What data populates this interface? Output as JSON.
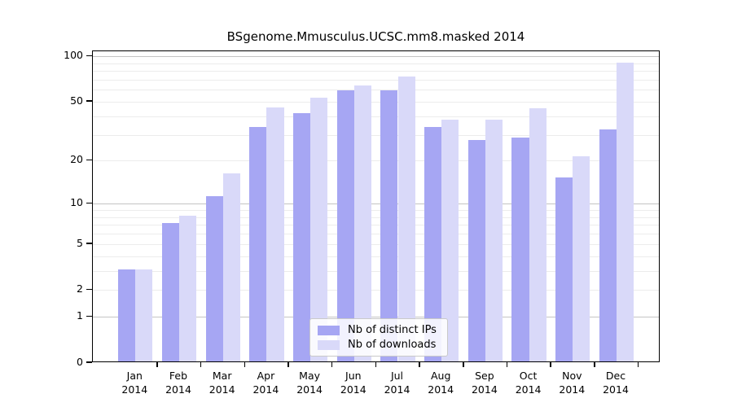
{
  "chart_data": {
    "type": "bar",
    "title": "BSgenome.Mmusculus.UCSC.mm8.masked 2014",
    "categories": [
      "Jan",
      "Feb",
      "Mar",
      "Apr",
      "May",
      "Jun",
      "Jul",
      "Aug",
      "Sep",
      "Oct",
      "Nov",
      "Dec"
    ],
    "year_label": "2014",
    "series": [
      {
        "name": "Nb of distinct IPs",
        "color": "#a6a6f3",
        "values": [
          3,
          7,
          11,
          33,
          41,
          58,
          58,
          33,
          27,
          28,
          15,
          32
        ]
      },
      {
        "name": "Nb of downloads",
        "color": "#d9d9f9",
        "values": [
          3,
          8,
          16,
          45,
          52,
          63,
          72,
          37,
          37,
          44,
          21,
          89
        ]
      }
    ],
    "y_axis": {
      "scale": "log1p",
      "tick_labels": [
        "100",
        "50",
        "20",
        "10",
        "5",
        "2",
        "1",
        "0"
      ],
      "tick_values": [
        100,
        50,
        20,
        10,
        5,
        2,
        1,
        0
      ],
      "major_gridlines": [
        1,
        10,
        100
      ],
      "minor_gridlines": [
        2,
        3,
        4,
        5,
        6,
        7,
        8,
        9,
        20,
        30,
        40,
        50,
        60,
        70,
        80,
        90
      ],
      "ylim": [
        0,
        100
      ]
    },
    "xlabel": "",
    "ylabel": "",
    "grid": true,
    "legend_position": "bottom-center"
  },
  "colors": {
    "distinct_ips": "#a6a6f3",
    "downloads": "#d9d9f9",
    "axis": "#000000",
    "gridline_major": "#c4c4c4",
    "gridline_minor": "#ececec",
    "legend_border": "#c9c9c9",
    "background": "#ffffff"
  }
}
